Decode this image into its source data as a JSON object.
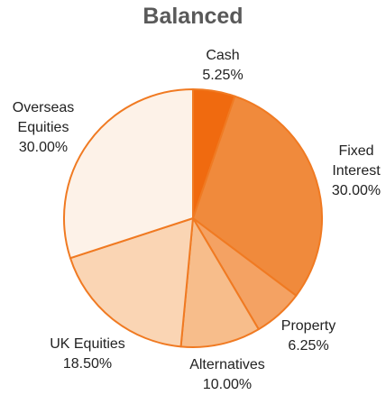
{
  "chart_data": {
    "type": "pie",
    "title": "Balanced",
    "categories": [
      "Cash",
      "Fixed Interest",
      "Property",
      "Alternatives",
      "UK Equities",
      "Overseas Equities"
    ],
    "values": [
      5.25,
      30,
      6.25,
      10,
      18.5,
      30
    ],
    "value_labels": [
      "5.25%",
      "30.00%",
      "6.25%",
      "10.00%",
      "18.50%",
      "30.00%"
    ],
    "colors": [
      "#f06a0f",
      "#f08a3c",
      "#f4a263",
      "#f7bd8b",
      "#fad5b4",
      "#fdf2e8"
    ],
    "edge_color": "#f07a22"
  }
}
